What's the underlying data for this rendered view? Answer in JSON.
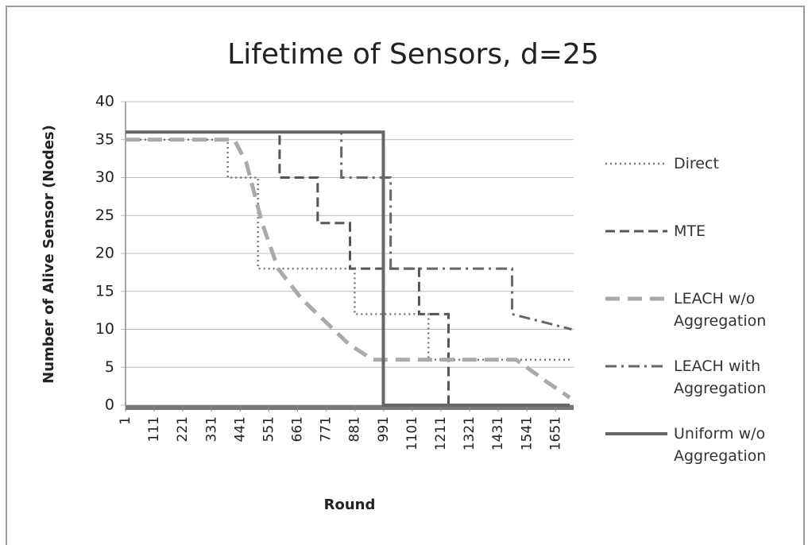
{
  "chart_data": {
    "type": "line",
    "title": "Lifetime of Sensors, d=25",
    "x_label": "Round",
    "y_label": "Number of Alive Sensor (Nodes)",
    "xlim": [
      1,
      1720
    ],
    "xticks": [
      1,
      111,
      221,
      331,
      441,
      551,
      661,
      771,
      881,
      991,
      1101,
      1211,
      1321,
      1431,
      1541,
      1651
    ],
    "ylim": [
      0,
      40
    ],
    "yticks": [
      0,
      5,
      10,
      15,
      20,
      25,
      30,
      35,
      40
    ],
    "grid": true,
    "legend": "right",
    "series": [
      {
        "name": "Direct",
        "color": "#777777",
        "dash": "dotted",
        "x": [
          1,
          393,
          393,
          509,
          509,
          880,
          880,
          1163,
          1163,
          1705
        ],
        "values": [
          35,
          35,
          30,
          30,
          18,
          18,
          12,
          12,
          6,
          6
        ]
      },
      {
        "name": "MTE",
        "color": "#555555",
        "dash": "dashed",
        "x": [
          1,
          592,
          592,
          738,
          738,
          862,
          862,
          1127,
          1127,
          1240,
          1240
        ],
        "values": [
          36,
          36,
          30,
          30,
          24,
          24,
          18,
          18,
          12,
          12,
          0
        ]
      },
      {
        "name": "LEACH w/o Aggregation",
        "color": "#aaaaaa",
        "dash": "longdash",
        "x": [
          1,
          418,
          464,
          525,
          586,
          677,
          768,
          859,
          950,
          1011,
          1499,
          1620,
          1705
        ],
        "values": [
          35,
          35,
          32,
          24,
          18,
          14,
          11,
          8,
          6,
          6,
          6,
          3,
          1
        ]
      },
      {
        "name": "LEACH with Aggregation",
        "color": "#666666",
        "dash": "dashdot",
        "x": [
          1,
          829,
          829,
          1018,
          1018,
          1484,
          1484,
          1712
        ],
        "values": [
          36,
          36,
          30,
          30,
          18,
          18,
          12,
          10
        ]
      },
      {
        "name": "Uniform w/o Aggregation",
        "color": "#666666",
        "dash": "solid",
        "x": [
          1,
          990,
          990,
          1705
        ],
        "values": [
          36,
          36,
          0,
          0
        ]
      }
    ]
  }
}
